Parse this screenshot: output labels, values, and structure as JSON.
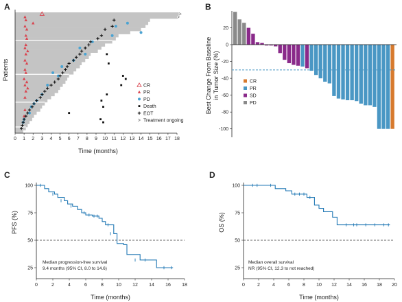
{
  "panels": [
    {
      "id": "A",
      "letter": "A"
    },
    {
      "id": "B",
      "letter": "B"
    },
    {
      "id": "C",
      "letter": "C"
    },
    {
      "id": "D",
      "letter": "D"
    }
  ],
  "chart_data": [
    {
      "panel": "A",
      "type": "swimmer",
      "xlabel": "Time (months)",
      "ylabel": "Patients",
      "xlim": [
        0,
        18
      ],
      "xticks": [
        "0",
        "1",
        "2",
        "3",
        "4",
        "5",
        "6",
        "7",
        "8",
        "9",
        "10",
        "11",
        "12",
        "13",
        "14",
        "15",
        "16",
        "17",
        "18"
      ],
      "colors": {
        "bar": "#c4c4c4",
        "cr": "#d9434e",
        "pr": "#d9434e",
        "pd": "#4aa3d2",
        "death": "#111111",
        "eot": "#111111"
      },
      "legend": [
        {
          "key": "cr",
          "label": "CR"
        },
        {
          "key": "pr",
          "label": "PR"
        },
        {
          "key": "pd",
          "label": "PD"
        },
        {
          "key": "death",
          "label": "Death"
        },
        {
          "key": "eot",
          "label": "EOT"
        },
        {
          "key": "ongoing",
          "label": "Treatment ongoing"
        }
      ],
      "n_patients": 39,
      "durations": [
        18.2,
        18.0,
        15.0,
        14.8,
        14.5,
        14.0,
        12.8,
        11.5,
        11.2,
        10.8,
        10.0,
        9.6,
        9.2,
        8.4,
        8.2,
        7.8,
        7.4,
        7.2,
        6.8,
        6.5,
        6.0,
        5.8,
        5.6,
        5.3,
        5.0,
        4.8,
        4.4,
        4.0,
        3.6,
        3.3,
        3.0,
        2.8,
        2.4,
        2.1,
        1.9,
        1.6,
        1.4,
        1.2,
        0.9
      ],
      "ongoing_rows": [
        1,
        2
      ],
      "cr_events": [
        [
          1,
          3.0
        ]
      ],
      "pr_events": [
        [
          2,
          1.1
        ],
        [
          3,
          1.2
        ],
        [
          4,
          2.0
        ],
        [
          5,
          1.1
        ],
        [
          6,
          1.3
        ],
        [
          8,
          1.2
        ],
        [
          9,
          1.3
        ],
        [
          11,
          1.2
        ],
        [
          12,
          1.1
        ],
        [
          13,
          1.4
        ],
        [
          14,
          1.2
        ],
        [
          16,
          1.1
        ],
        [
          17,
          1.3
        ],
        [
          19,
          1.1
        ],
        [
          20,
          1.2
        ],
        [
          22,
          1.0
        ],
        [
          23,
          1.3
        ],
        [
          24,
          1.1
        ],
        [
          25,
          1.4
        ],
        [
          26,
          1.2
        ],
        [
          28,
          1.1
        ],
        [
          32,
          1.1
        ],
        [
          34,
          1.0
        ]
      ],
      "pd_events": [
        [
          4,
          12.5
        ],
        [
          5,
          11.2
        ],
        [
          7,
          14.0
        ],
        [
          8,
          10.8
        ],
        [
          10,
          8.6
        ],
        [
          12,
          7.2
        ],
        [
          14,
          7.8
        ],
        [
          16,
          6.5
        ],
        [
          18,
          5.2
        ],
        [
          20,
          4.2
        ],
        [
          21,
          4.8
        ],
        [
          24,
          3.6
        ],
        [
          27,
          3.0
        ],
        [
          29,
          2.4
        ],
        [
          30,
          2.1
        ],
        [
          31,
          1.8
        ],
        [
          33,
          1.6
        ],
        [
          35,
          1.0
        ],
        [
          36,
          0.9
        ]
      ],
      "death_events": [
        [
          14,
          10.2
        ],
        [
          17,
          10.4
        ],
        [
          21,
          12.0
        ],
        [
          22,
          12.3
        ],
        [
          24,
          11.8
        ],
        [
          27,
          10.2
        ],
        [
          29,
          9.6
        ],
        [
          31,
          9.8
        ],
        [
          33,
          6.0
        ],
        [
          35,
          9.5
        ],
        [
          36,
          9.8
        ]
      ],
      "eot_events": [
        [
          3,
          11.0
        ],
        [
          5,
          10.8
        ],
        [
          6,
          10.0
        ],
        [
          8,
          9.6
        ],
        [
          9,
          9.2
        ],
        [
          10,
          8.4
        ],
        [
          11,
          8.2
        ],
        [
          12,
          7.8
        ],
        [
          13,
          7.4
        ],
        [
          14,
          7.2
        ],
        [
          15,
          6.8
        ],
        [
          16,
          6.5
        ],
        [
          17,
          6.0
        ],
        [
          18,
          5.8
        ],
        [
          19,
          5.6
        ],
        [
          20,
          5.3
        ],
        [
          21,
          5.0
        ],
        [
          22,
          4.8
        ],
        [
          23,
          4.4
        ],
        [
          24,
          4.0
        ],
        [
          25,
          3.6
        ],
        [
          26,
          3.3
        ],
        [
          27,
          3.0
        ],
        [
          28,
          2.8
        ],
        [
          29,
          2.4
        ],
        [
          30,
          2.1
        ],
        [
          31,
          1.9
        ],
        [
          32,
          1.6
        ],
        [
          33,
          1.4
        ],
        [
          34,
          1.2
        ],
        [
          35,
          1.0
        ],
        [
          36,
          0.9
        ],
        [
          37,
          0.8
        ],
        [
          38,
          0.7
        ]
      ]
    },
    {
      "panel": "B",
      "type": "bar",
      "ylabel_lines": [
        "Best Change From Baseline",
        "in Tumor Size (%)"
      ],
      "ylim": [
        -110,
        40
      ],
      "yticks": [
        20,
        0,
        -20,
        -40,
        -60,
        -80,
        -100
      ],
      "threshold": -30,
      "colors": {
        "CR": "#d77a2e",
        "PR": "#4a97c4",
        "SD": "#8a2a8a",
        "PD": "#8a8a8a"
      },
      "legend": [
        {
          "key": "CR",
          "label": "CR"
        },
        {
          "key": "PR",
          "label": "PR"
        },
        {
          "key": "SD",
          "label": "SD"
        },
        {
          "key": "PD",
          "label": "PD"
        }
      ],
      "values": [
        39,
        30,
        26,
        20,
        13,
        3,
        2,
        -1,
        -1,
        -2,
        -10,
        -18,
        -22,
        -24,
        -25,
        -26,
        -28,
        -31,
        -36,
        -40,
        -44,
        -46,
        -61,
        -64,
        -65,
        -66,
        -66,
        -67,
        -70,
        -72,
        -72,
        -74,
        -100,
        -100,
        -100,
        -100
      ],
      "responses": [
        "PD",
        "PD",
        "PD",
        "SD",
        "SD",
        "SD",
        "SD",
        "SD",
        "SD",
        "SD",
        "SD",
        "SD",
        "SD",
        "SD",
        "SD",
        "PR",
        "SD",
        "PR",
        "PR",
        "PR",
        "PR",
        "PR",
        "PR",
        "PR",
        "PR",
        "PR",
        "PR",
        "PR",
        "PR",
        "PR",
        "PR",
        "PR",
        "PR",
        "PR",
        "PR",
        "CR"
      ]
    },
    {
      "panel": "C",
      "type": "line",
      "subtype": "kaplan-meier",
      "xlabel": "Time (months)",
      "ylabel": "PFS (%)",
      "xlim": [
        0,
        18
      ],
      "ylim": [
        15,
        100
      ],
      "xticks": [
        0,
        2,
        4,
        6,
        8,
        10,
        12,
        14,
        16,
        18
      ],
      "yticks": [
        100,
        75,
        50,
        25
      ],
      "reference": 50,
      "color": "#1f77b4",
      "annotation": [
        "Median progression-free survival",
        "9.4 months (95% CI, 8.0 to 14.6)"
      ],
      "x": [
        0,
        1.0,
        1.5,
        2.2,
        2.6,
        3.4,
        3.8,
        4.4,
        5.0,
        5.5,
        6.0,
        6.8,
        7.6,
        8.0,
        8.4,
        9.4,
        9.8,
        10.6,
        11.0,
        12.6,
        14.0,
        14.6,
        16.6
      ],
      "y": [
        100,
        97,
        94,
        92,
        89,
        86,
        83,
        81,
        78,
        75,
        73,
        72,
        70,
        67,
        64,
        56,
        47,
        46,
        37,
        32,
        32,
        25,
        25
      ],
      "censored": [
        [
          0.5,
          100
        ],
        [
          2.0,
          92
        ],
        [
          3.0,
          86
        ],
        [
          4.2,
          81
        ],
        [
          5.8,
          75
        ],
        [
          6.4,
          73
        ],
        [
          7.0,
          72
        ],
        [
          7.4,
          72
        ],
        [
          8.7,
          64
        ],
        [
          9.0,
          56
        ],
        [
          12.0,
          32
        ],
        [
          13.2,
          32
        ],
        [
          15.5,
          25
        ],
        [
          16.4,
          25
        ]
      ]
    },
    {
      "panel": "D",
      "type": "line",
      "subtype": "kaplan-meier",
      "xlabel": "Time (months)",
      "ylabel": "OS (%)",
      "xlim": [
        0,
        20
      ],
      "ylim": [
        15,
        100
      ],
      "xticks": [
        0,
        2,
        4,
        6,
        8,
        10,
        12,
        14,
        16,
        18,
        20
      ],
      "yticks": [
        100,
        75,
        50,
        25
      ],
      "reference": 50,
      "color": "#1f77b4",
      "annotation": [
        "Median overall survival",
        "NR (95% CI, 12.3 to not reached)"
      ],
      "x": [
        0,
        4.2,
        5.6,
        6.4,
        8.4,
        9.4,
        10.0,
        10.6,
        11.8,
        12.4,
        19.4
      ],
      "y": [
        100,
        97,
        95,
        92,
        89,
        82,
        79,
        76,
        71,
        64,
        64
      ],
      "censored": [
        [
          1.2,
          100
        ],
        [
          1.8,
          100
        ],
        [
          3.6,
          100
        ],
        [
          6.8,
          92
        ],
        [
          7.4,
          92
        ],
        [
          8.0,
          92
        ],
        [
          8.8,
          89
        ],
        [
          13.6,
          64
        ],
        [
          14.6,
          64
        ],
        [
          15.0,
          64
        ],
        [
          16.2,
          64
        ],
        [
          17.4,
          64
        ],
        [
          18.6,
          64
        ],
        [
          19.2,
          64
        ]
      ]
    }
  ]
}
